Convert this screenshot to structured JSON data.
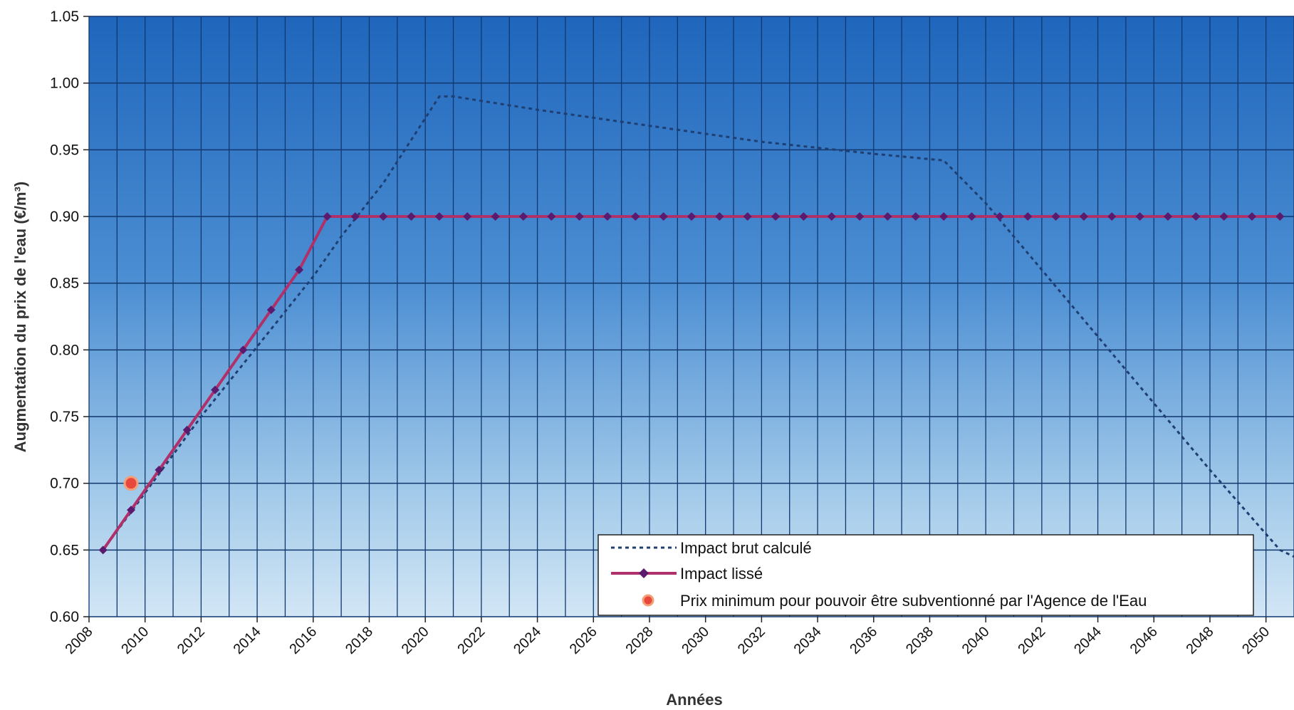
{
  "chart_data": {
    "type": "line",
    "title": "",
    "xlabel": "Années",
    "ylabel": "Augmentation du prix de l'eau (€/m³)",
    "xlim": [
      2008,
      2051
    ],
    "ylim": [
      0.6,
      1.05
    ],
    "x_ticks": [
      2008,
      2010,
      2012,
      2014,
      2016,
      2018,
      2020,
      2022,
      2024,
      2026,
      2028,
      2030,
      2032,
      2034,
      2036,
      2038,
      2040,
      2042,
      2044,
      2046,
      2048,
      2050
    ],
    "y_ticks": [
      "0.60",
      "0.65",
      "0.70",
      "0.75",
      "0.80",
      "0.85",
      "0.90",
      "0.95",
      "1.00",
      "1.05"
    ],
    "grid": true,
    "legend_position": "bottom-right",
    "background": "blue-gradient",
    "series": [
      {
        "name": "Impact brut calculé",
        "style": "dotted",
        "color": "#1f3f73",
        "x": [
          2008.5,
          2012,
          2016,
          2017,
          2018.5,
          2020.5,
          2021,
          2024,
          2028,
          2032,
          2036,
          2038.5,
          2040,
          2044,
          2048,
          2050.5,
          2051
        ],
        "values": [
          0.65,
          0.75,
          0.855,
          0.885,
          0.925,
          0.99,
          0.99,
          0.98,
          0.968,
          0.956,
          0.947,
          0.942,
          0.91,
          0.81,
          0.71,
          0.65,
          0.645
        ]
      },
      {
        "name": "Impact lissé",
        "style": "solid-diamond",
        "color": "#b0306a",
        "marker_color": "#5a1b6f",
        "x": [
          2008.5,
          2009.5,
          2010.5,
          2011.5,
          2012.5,
          2013.5,
          2014.5,
          2015.5,
          2016.5,
          2017.5,
          2018.5,
          2019.5,
          2020.5,
          2021.5,
          2022.5,
          2023.5,
          2024.5,
          2025.5,
          2026.5,
          2027.5,
          2028.5,
          2029.5,
          2030.5,
          2031.5,
          2032.5,
          2033.5,
          2034.5,
          2035.5,
          2036.5,
          2037.5,
          2038.5,
          2039.5,
          2040.5,
          2041.5,
          2042.5,
          2043.5,
          2044.5,
          2045.5,
          2046.5,
          2047.5,
          2048.5,
          2049.5,
          2050.5
        ],
        "values": [
          0.65,
          0.68,
          0.71,
          0.74,
          0.77,
          0.8,
          0.83,
          0.86,
          0.9,
          0.9,
          0.9,
          0.9,
          0.9,
          0.9,
          0.9,
          0.9,
          0.9,
          0.9,
          0.9,
          0.9,
          0.9,
          0.9,
          0.9,
          0.9,
          0.9,
          0.9,
          0.9,
          0.9,
          0.9,
          0.9,
          0.9,
          0.9,
          0.9,
          0.9,
          0.9,
          0.9,
          0.9,
          0.9,
          0.9,
          0.9,
          0.9,
          0.9,
          0.9
        ]
      },
      {
        "name": "Prix minimum pour pouvoir être subventionné par l'Agence de l'Eau",
        "style": "point",
        "color": "#e8483c",
        "x": [
          2009.5
        ],
        "values": [
          0.7
        ]
      }
    ]
  }
}
